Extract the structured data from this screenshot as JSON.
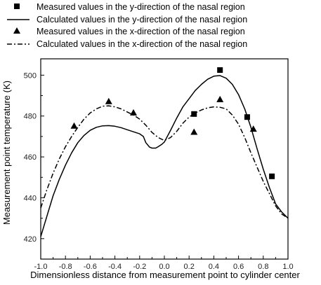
{
  "chart_data": {
    "type": "line",
    "title": "",
    "xlabel": "Dimensionless distance from measurement point to cylinder center",
    "ylabel": "Measurement point temperature (K)",
    "xlim": [
      -1.0,
      1.0
    ],
    "ylim": [
      410,
      508
    ],
    "xticks": [
      "-1.0",
      "-0.8",
      "-0.6",
      "-0.4",
      "-0.2",
      "0.0",
      "0.2",
      "0.4",
      "0.6",
      "0.8",
      "1.0"
    ],
    "yticks": [
      "420",
      "440",
      "460",
      "480",
      "500"
    ],
    "legend_position": "top",
    "grid": false,
    "series": [
      {
        "name": "Measured values in the y-direction of the nasal region",
        "kind": "scatter",
        "marker": "square",
        "x": [
          0.24,
          0.45,
          0.67,
          0.87
        ],
        "y": [
          481,
          502.5,
          479.5,
          450.5
        ]
      },
      {
        "name": "Calculated values in the y-direction of the nasal region",
        "kind": "line",
        "style": "solid",
        "x": [
          -1.0,
          -0.95,
          -0.9,
          -0.85,
          -0.8,
          -0.75,
          -0.7,
          -0.65,
          -0.6,
          -0.55,
          -0.5,
          -0.45,
          -0.4,
          -0.35,
          -0.3,
          -0.25,
          -0.2,
          -0.17,
          -0.15,
          -0.12,
          -0.1,
          -0.07,
          -0.05,
          -0.02,
          0.0,
          0.05,
          0.1,
          0.15,
          0.2,
          0.25,
          0.3,
          0.35,
          0.4,
          0.45,
          0.5,
          0.55,
          0.6,
          0.65,
          0.7,
          0.75,
          0.8,
          0.85,
          0.9,
          0.95,
          1.0
        ],
        "y": [
          421,
          431,
          441,
          449,
          456,
          462,
          467,
          470.5,
          473,
          474.5,
          475.2,
          475.3,
          475,
          474.3,
          473.3,
          472.3,
          471.3,
          470,
          467,
          464.8,
          464.3,
          464.3,
          465,
          466.2,
          467.3,
          473,
          479,
          484.5,
          488.5,
          492.5,
          495.5,
          498,
          499.5,
          499.8,
          498.5,
          495.5,
          490.5,
          483.5,
          474.5,
          464,
          454,
          445,
          437,
          433,
          430
        ]
      },
      {
        "name": "Measured values in the x-direction of the nasal region",
        "kind": "scatter",
        "marker": "triangle",
        "x": [
          -0.73,
          -0.45,
          -0.25,
          0.24,
          0.45,
          0.72
        ],
        "y": [
          475,
          487,
          481.5,
          472,
          488,
          473.5
        ]
      },
      {
        "name": "Calculated values in the x-direction of the nasal region",
        "kind": "line",
        "style": "dash-dot",
        "x": [
          -1.0,
          -0.95,
          -0.9,
          -0.85,
          -0.8,
          -0.75,
          -0.7,
          -0.65,
          -0.6,
          -0.55,
          -0.5,
          -0.45,
          -0.4,
          -0.35,
          -0.3,
          -0.25,
          -0.2,
          -0.15,
          -0.1,
          -0.05,
          0.0,
          0.05,
          0.1,
          0.15,
          0.2,
          0.25,
          0.3,
          0.35,
          0.4,
          0.45,
          0.5,
          0.55,
          0.6,
          0.65,
          0.7,
          0.75,
          0.8,
          0.85,
          0.9,
          0.95,
          1.0
        ],
        "y": [
          435,
          444,
          452,
          459,
          465,
          470,
          474.5,
          478.5,
          481.5,
          483.5,
          484.8,
          485,
          484.5,
          483.5,
          482,
          480.5,
          478.5,
          475.5,
          472,
          469.5,
          468,
          469.5,
          472.5,
          476.5,
          479.5,
          481.5,
          483,
          484,
          484.5,
          484.3,
          483.5,
          480.5,
          476,
          469.5,
          462,
          455,
          448,
          442,
          436,
          432,
          430
        ]
      }
    ]
  }
}
